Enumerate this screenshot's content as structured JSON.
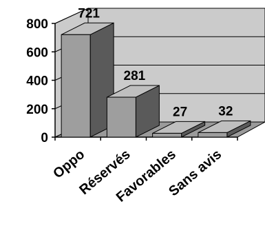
{
  "chart_data": {
    "type": "bar",
    "style": "3d-column",
    "categories": [
      "Opposés",
      "Réservés",
      "Favorables",
      "Sans avis"
    ],
    "category_labels_visible": [
      "Oppo",
      "Réservés",
      "Favorables",
      "Sans avis"
    ],
    "values": [
      721,
      281,
      27,
      32
    ],
    "data_labels": [
      "721",
      "281",
      "27",
      "32"
    ],
    "ylim": [
      0,
      800
    ],
    "yticks": [
      0,
      200,
      400,
      600,
      800
    ],
    "ytick_labels": [
      "0",
      "200",
      "400",
      "600",
      "800"
    ],
    "grid": true,
    "legend": false,
    "title": "",
    "xlabel": "",
    "ylabel": "",
    "colors": {
      "bar_front": "#9e9e9e",
      "bar_top": "#bfbfbf",
      "bar_side": "#5a5a5a",
      "walls": "#cbcbcb",
      "floor": "#9a9a9a",
      "gridline": "#000000"
    }
  }
}
